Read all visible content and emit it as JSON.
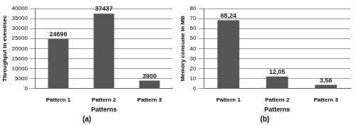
{
  "chart_data": [
    {
      "type": "bar",
      "title": "(a)",
      "x_label": "Patterns",
      "y_label": "Throughput in event/sec",
      "categories": [
        "Pattern 1",
        "Pattern 2",
        "Pattern 3"
      ],
      "values": [
        24696,
        37437,
        3900
      ],
      "color": "#555555",
      "ylim": [
        0,
        40000
      ],
      "yticks": [
        0,
        5000,
        10000,
        15000,
        20000,
        25000,
        30000,
        35000,
        40000
      ],
      "grid": true,
      "data_labels": true
    },
    {
      "type": "bar",
      "title": "(b)",
      "x_label": "Patterns",
      "y_label": "Memory consume in MB",
      "categories": [
        "Pattern 1",
        "Pattern 2",
        "Pattern 3"
      ],
      "values": [
        68.24,
        12.05,
        3.56
      ],
      "value_labels": [
        "68,24",
        "12,05",
        "3,56"
      ],
      "color": "#555555",
      "ylim": [
        0,
        80
      ],
      "yticks": [
        0,
        10,
        20,
        30,
        40,
        50,
        60,
        70,
        80
      ],
      "grid": true,
      "data_labels": true
    }
  ]
}
